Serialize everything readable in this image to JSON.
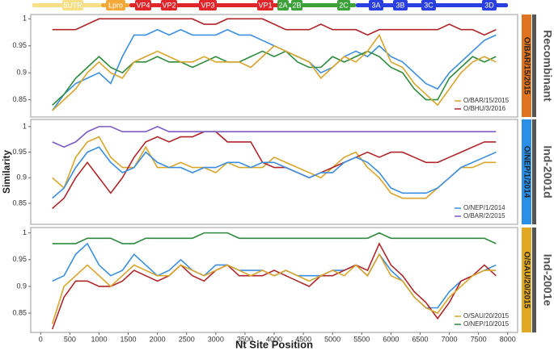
{
  "genome_regions": [
    "5UTR",
    "Lpro",
    "VP4",
    "VP2",
    "VP3",
    "VP1",
    "2A",
    "2B",
    "2C",
    "3A",
    "3B",
    "3C",
    "3D"
  ],
  "chart_data": [
    {
      "type": "line",
      "strip_label": "O/BAR/15/2015",
      "strip_color": "#e0731f",
      "group_label": "Recombinant",
      "legend": "lower right",
      "x": [
        200,
        400,
        600,
        800,
        1000,
        1200,
        1400,
        1600,
        1800,
        2000,
        2200,
        2400,
        2600,
        2800,
        3000,
        3200,
        3400,
        3600,
        3800,
        4000,
        4200,
        4400,
        4600,
        4800,
        5000,
        5200,
        5400,
        5600,
        5800,
        6000,
        6200,
        6400,
        6600,
        6800,
        7000,
        7200,
        7400,
        7600,
        7800
      ],
      "xlim": [
        -170,
        8170
      ],
      "ylim": [
        0.818,
        1.008
      ],
      "yticks": [
        0.85,
        0.9,
        0.95,
        1
      ],
      "series": [
        {
          "color": "#3b8fe0",
          "values": [
            0.83,
            0.86,
            0.88,
            0.89,
            0.9,
            0.88,
            0.93,
            0.97,
            0.97,
            0.98,
            0.97,
            0.98,
            0.97,
            0.97,
            0.97,
            0.98,
            0.97,
            0.97,
            0.96,
            0.95,
            0.94,
            0.93,
            0.92,
            0.9,
            0.91,
            0.93,
            0.94,
            0.93,
            0.95,
            0.93,
            0.92,
            0.9,
            0.88,
            0.87,
            0.9,
            0.92,
            0.94,
            0.96,
            0.97
          ]
        },
        {
          "color": "#2e8b3e",
          "values": [
            0.84,
            0.86,
            0.89,
            0.91,
            0.93,
            0.91,
            0.9,
            0.92,
            0.92,
            0.93,
            0.92,
            0.92,
            0.91,
            0.92,
            0.93,
            0.92,
            0.92,
            0.93,
            0.94,
            0.93,
            0.94,
            0.92,
            0.91,
            0.91,
            0.93,
            0.92,
            0.93,
            0.94,
            0.93,
            0.91,
            0.9,
            0.87,
            0.85,
            0.85,
            0.89,
            0.91,
            0.93,
            0.92,
            0.93
          ]
        },
        {
          "name": "O/BAR/15/2015",
          "color": "#d9a52a",
          "values": [
            0.83,
            0.85,
            0.87,
            0.9,
            0.92,
            0.9,
            0.89,
            0.92,
            0.93,
            0.94,
            0.93,
            0.92,
            0.92,
            0.93,
            0.92,
            0.92,
            0.92,
            0.91,
            0.93,
            0.95,
            0.94,
            0.93,
            0.92,
            0.89,
            0.91,
            0.93,
            0.92,
            0.94,
            0.97,
            0.92,
            0.91,
            0.88,
            0.86,
            0.84,
            0.87,
            0.9,
            0.92,
            0.93,
            0.92
          ]
        },
        {
          "name": "O/BHU/3/2016",
          "color": "#b0262a",
          "values": [
            0.98,
            0.98,
            0.98,
            0.99,
            1.0,
            1.0,
            1.0,
            1.0,
            1.0,
            1.0,
            1.0,
            1.0,
            1.0,
            0.99,
            0.99,
            1.0,
            1.0,
            1.0,
            1.0,
            0.99,
            0.98,
            0.98,
            0.98,
            0.99,
            0.98,
            0.98,
            0.98,
            0.97,
            0.98,
            0.98,
            0.98,
            0.98,
            0.98,
            0.98,
            0.99,
            0.98,
            0.98,
            0.97,
            0.98
          ]
        }
      ]
    },
    {
      "type": "line",
      "strip_label": "O/NEP/1/2014",
      "strip_color": "#2a8fe8",
      "group_label": "Ind-2001d",
      "legend": "lower right",
      "ylabel": "Similarity",
      "x": [
        200,
        400,
        600,
        800,
        1000,
        1200,
        1400,
        1600,
        1800,
        2000,
        2200,
        2400,
        2600,
        2800,
        3000,
        3200,
        3400,
        3600,
        3800,
        4000,
        4200,
        4400,
        4600,
        4800,
        5000,
        5200,
        5400,
        5600,
        5800,
        6000,
        6200,
        6400,
        6600,
        6800,
        7000,
        7200,
        7400,
        7600,
        7800
      ],
      "xlim": [
        -170,
        8170
      ],
      "ylim": [
        0.809,
        1.014
      ],
      "yticks": [
        0.85,
        0.9,
        0.95,
        1
      ],
      "series": [
        {
          "color": "#d9a52a",
          "values": [
            0.9,
            0.88,
            0.94,
            0.97,
            0.98,
            0.94,
            0.92,
            0.92,
            0.96,
            0.92,
            0.92,
            0.93,
            0.92,
            0.92,
            0.91,
            0.93,
            0.92,
            0.92,
            0.92,
            0.94,
            0.93,
            0.92,
            0.91,
            0.9,
            0.92,
            0.94,
            0.95,
            0.92,
            0.9,
            0.87,
            0.86,
            0.86,
            0.86,
            0.88,
            0.9,
            0.92,
            0.92,
            0.93,
            0.93
          ]
        },
        {
          "color": "#b0262a",
          "values": [
            0.84,
            0.86,
            0.9,
            0.93,
            0.9,
            0.87,
            0.9,
            0.94,
            0.97,
            0.98,
            0.97,
            0.98,
            0.98,
            0.99,
            0.99,
            0.97,
            0.97,
            0.97,
            0.93,
            0.92,
            0.92,
            0.91,
            0.9,
            0.91,
            0.92,
            0.93,
            0.94,
            0.95,
            0.94,
            0.95,
            0.95,
            0.94,
            0.93,
            0.93,
            0.94,
            0.95,
            0.96,
            0.97,
            0.97
          ]
        },
        {
          "name": "O/NEP/1/2014",
          "color": "#3b8fe0",
          "values": [
            0.86,
            0.88,
            0.92,
            0.95,
            0.96,
            0.93,
            0.91,
            0.92,
            0.95,
            0.93,
            0.92,
            0.92,
            0.91,
            0.92,
            0.92,
            0.93,
            0.93,
            0.92,
            0.93,
            0.93,
            0.92,
            0.91,
            0.9,
            0.91,
            0.91,
            0.93,
            0.94,
            0.93,
            0.91,
            0.88,
            0.87,
            0.87,
            0.87,
            0.88,
            0.9,
            0.92,
            0.93,
            0.94,
            0.95
          ]
        },
        {
          "name": "O/BAR/2/2015",
          "color": "#7b5cc4",
          "values": [
            0.97,
            0.96,
            0.97,
            0.99,
            1.0,
            1.0,
            0.99,
            0.99,
            0.99,
            1.0,
            0.99,
            0.99,
            0.99,
            0.99,
            0.99,
            0.99,
            0.99,
            0.99,
            0.99,
            0.99,
            0.99,
            0.99,
            0.99,
            0.99,
            0.99,
            0.99,
            0.99,
            0.99,
            0.99,
            0.99,
            0.99,
            0.99,
            0.99,
            0.99,
            0.99,
            0.99,
            0.99,
            0.99,
            0.99
          ]
        }
      ]
    },
    {
      "type": "line",
      "strip_label": "O/SAU/20/2015",
      "strip_color": "#e0a823",
      "group_label": "Ind-2001e",
      "legend": "lower right",
      "xlabel": "Nt Site Position",
      "x": [
        200,
        400,
        600,
        800,
        1000,
        1200,
        1400,
        1600,
        1800,
        2000,
        2200,
        2400,
        2600,
        2800,
        3000,
        3200,
        3400,
        3600,
        3800,
        4000,
        4200,
        4400,
        4600,
        4800,
        5000,
        5200,
        5400,
        5600,
        5800,
        6000,
        6200,
        6400,
        6600,
        6800,
        7000,
        7200,
        7400,
        7600,
        7800
      ],
      "xlim": [
        -170,
        8170
      ],
      "xticks": [
        0,
        500,
        1000,
        1500,
        2000,
        2500,
        3000,
        3500,
        4000,
        4500,
        5000,
        5500,
        6000,
        6500,
        7000,
        7500,
        8000
      ],
      "ylim": [
        0.814,
        1.01
      ],
      "yticks": [
        0.85,
        0.9,
        0.95,
        1
      ],
      "series": [
        {
          "color": "#3b8fe0",
          "values": [
            0.91,
            0.92,
            0.96,
            0.98,
            0.94,
            0.92,
            0.93,
            0.96,
            0.94,
            0.92,
            0.93,
            0.95,
            0.93,
            0.92,
            0.94,
            0.94,
            0.93,
            0.93,
            0.93,
            0.92,
            0.93,
            0.92,
            0.92,
            0.92,
            0.93,
            0.93,
            0.94,
            0.92,
            0.96,
            0.93,
            0.91,
            0.88,
            0.86,
            0.86,
            0.89,
            0.91,
            0.92,
            0.93,
            0.94
          ]
        },
        {
          "color": "#b0262a",
          "values": [
            0.82,
            0.88,
            0.91,
            0.91,
            0.9,
            0.9,
            0.91,
            0.93,
            0.92,
            0.91,
            0.92,
            0.94,
            0.92,
            0.91,
            0.93,
            0.94,
            0.92,
            0.92,
            0.92,
            0.93,
            0.92,
            0.91,
            0.9,
            0.92,
            0.92,
            0.93,
            0.94,
            0.93,
            0.98,
            0.94,
            0.92,
            0.89,
            0.87,
            0.84,
            0.87,
            0.91,
            0.92,
            0.94,
            0.92
          ]
        },
        {
          "name": "O/SAU/20/2015",
          "color": "#d9a52a",
          "values": [
            0.83,
            0.9,
            0.92,
            0.94,
            0.92,
            0.9,
            0.92,
            0.94,
            0.93,
            0.92,
            0.92,
            0.94,
            0.93,
            0.92,
            0.93,
            0.94,
            0.93,
            0.92,
            0.93,
            0.92,
            0.93,
            0.92,
            0.91,
            0.92,
            0.93,
            0.92,
            0.94,
            0.92,
            0.96,
            0.92,
            0.91,
            0.88,
            0.86,
            0.85,
            0.88,
            0.9,
            0.92,
            0.93,
            0.93
          ]
        },
        {
          "name": "O/NEP/10/2015",
          "color": "#2e8b3e",
          "values": [
            0.98,
            0.98,
            0.98,
            0.99,
            0.99,
            0.99,
            0.98,
            0.98,
            0.99,
            0.99,
            0.99,
            0.99,
            0.99,
            1.0,
            1.0,
            1.0,
            0.99,
            0.99,
            0.99,
            0.99,
            0.99,
            0.99,
            0.99,
            0.99,
            0.99,
            0.99,
            0.99,
            0.99,
            1.0,
            0.99,
            0.99,
            0.99,
            0.99,
            0.99,
            0.99,
            0.99,
            0.99,
            0.99,
            0.98
          ]
        }
      ]
    }
  ]
}
